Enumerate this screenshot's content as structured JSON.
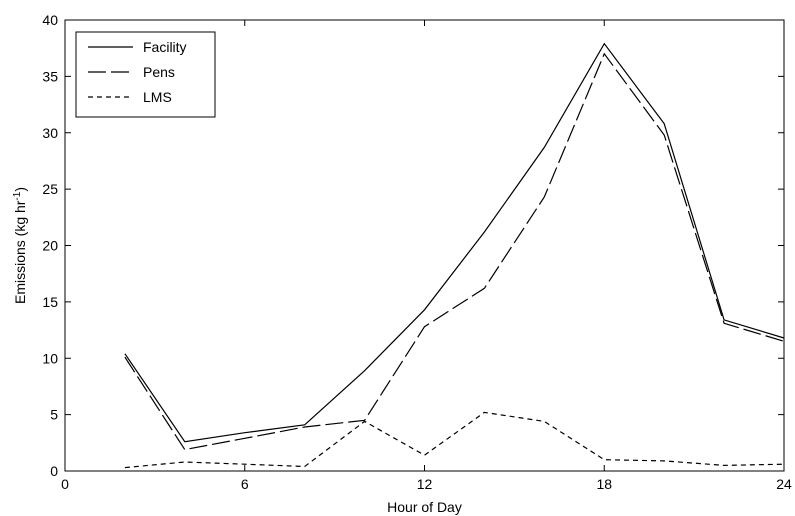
{
  "chart_data": {
    "type": "line",
    "xlabel": "Hour of Day",
    "ylabel": "Emissions (kg hr",
    "ylabel_sup": "-1",
    "ylabel_close": ")",
    "xlim": [
      0,
      24
    ],
    "ylim": [
      0,
      40
    ],
    "xticks": [
      0,
      6,
      12,
      18,
      24
    ],
    "yticks": [
      0,
      5,
      10,
      15,
      20,
      25,
      30,
      35,
      40
    ],
    "grid": false,
    "legend_position": "top-left",
    "series": [
      {
        "name": "Facility",
        "style": "solid",
        "color": "#000000",
        "x": [
          2,
          4,
          6,
          8,
          10,
          12,
          14,
          16,
          18,
          20,
          22,
          24
        ],
        "y": [
          10.4,
          2.6,
          3.4,
          4.1,
          8.9,
          14.3,
          21.2,
          28.7,
          37.9,
          30.8,
          13.4,
          11.8
        ]
      },
      {
        "name": "Pens",
        "style": "longdash",
        "color": "#000000",
        "x": [
          2,
          4,
          6,
          8,
          10,
          12,
          14,
          16,
          18,
          20,
          22,
          24
        ],
        "y": [
          10.1,
          1.9,
          2.9,
          3.9,
          4.5,
          12.8,
          16.2,
          24.3,
          37.0,
          29.8,
          13.1,
          11.5
        ]
      },
      {
        "name": "LMS",
        "style": "shortdash",
        "color": "#000000",
        "x": [
          2,
          4,
          6,
          8,
          10,
          12,
          14,
          16,
          18,
          20,
          22,
          24
        ],
        "y": [
          0.3,
          0.8,
          0.6,
          0.4,
          4.4,
          1.4,
          5.2,
          4.4,
          1.0,
          0.9,
          0.5,
          0.6
        ]
      }
    ]
  }
}
